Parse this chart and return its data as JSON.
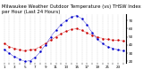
{
  "title": "Milwaukee Weather Outdoor Temperature (vs) THSW Index per Hour (Last 24 Hours)",
  "temp": [
    42,
    38,
    36,
    34,
    33,
    34,
    35,
    38,
    42,
    46,
    50,
    54,
    57,
    59,
    60,
    58,
    55,
    52,
    50,
    48,
    47,
    46,
    46,
    45
  ],
  "thsw": [
    35,
    30,
    26,
    23,
    20,
    21,
    25,
    32,
    40,
    50,
    58,
    65,
    70,
    74,
    76,
    72,
    65,
    55,
    47,
    42,
    38,
    36,
    34,
    33
  ],
  "temp_color": "#cc0000",
  "thsw_color": "#0000cc",
  "bg_color": "#ffffff",
  "grid_color": "#888888",
  "ylim": [
    18,
    78
  ],
  "yticks": [
    20,
    30,
    40,
    50,
    60,
    70
  ],
  "title_fontsize": 3.8,
  "tick_fontsize": 3.0,
  "n_hours": 24
}
